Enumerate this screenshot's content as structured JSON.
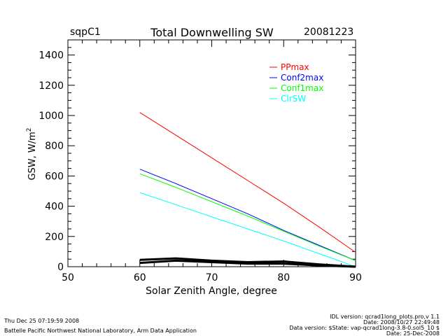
{
  "chart_data": {
    "type": "line",
    "title": "Total Downwelling SW",
    "site": "sqpC1",
    "date": "20081223",
    "xlabel": "Solar Zenith Angle, degree",
    "ylabel": "GSW, W/m",
    "ylabel_sup": "2",
    "xlim": [
      50,
      90
    ],
    "ylim": [
      0,
      1500
    ],
    "xticks": [
      "50",
      "60",
      "70",
      "80",
      "90"
    ],
    "yticks": [
      "0",
      "200",
      "400",
      "600",
      "800",
      "1000",
      "1200",
      "1400"
    ],
    "legend_position": "top-right",
    "x": [
      60,
      65,
      70,
      75,
      80,
      85,
      90
    ],
    "series": [
      {
        "name": "PPmax",
        "color": "#ff0000",
        "values": [
          1020,
          870,
          720,
          570,
          420,
          260,
          95
        ]
      },
      {
        "name": "Conf2max",
        "color": "#0000ff",
        "values": [
          645,
          550,
          450,
          350,
          240,
          140,
          40
        ]
      },
      {
        "name": "Conf1max",
        "color": "#00ff00",
        "values": [
          615,
          525,
          430,
          335,
          235,
          135,
          40
        ]
      },
      {
        "name": "ClrSW",
        "color": "#00ffff",
        "values": [
          490,
          410,
          330,
          250,
          170,
          85,
          0
        ]
      },
      {
        "name": "",
        "color": "#000000",
        "values": [
          45,
          55,
          40,
          30,
          35,
          15,
          0
        ]
      },
      {
        "name": "",
        "color": "#000000",
        "values": [
          25,
          40,
          30,
          20,
          20,
          8,
          0
        ]
      }
    ]
  },
  "footer": {
    "timestamp": "Thu Dec 25 07:19:59 2008",
    "org": "Battelle Pacific Northwest National Laboratory, Arm Data Application",
    "idl": "IDL version: qcrad1long_plots.pro,v 1.1",
    "date1": "Date: 2008/10/27 22:49:48",
    "dataver": "Data version: $State: vap-qcrad1long-3.8-0.sol5_10 $",
    "date2": "Date: 25-Dec-2008"
  }
}
